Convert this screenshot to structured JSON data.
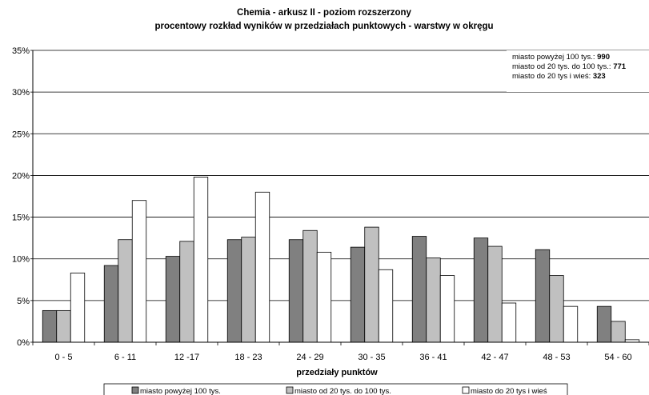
{
  "chart_data": {
    "type": "bar",
    "title": "Chemia - arkusz II - poziom rozszerzony",
    "subtitle": "procentowy rozkład wyników w przedziałach punktowych - warstwy w okręgu",
    "xlabel": "przedziały punktów",
    "ylabel": "",
    "ylim": [
      0,
      35
    ],
    "yticks": [
      "0%",
      "5%",
      "10%",
      "15%",
      "20%",
      "25%",
      "30%",
      "35%"
    ],
    "grid": true,
    "legend_position": "bottom",
    "categories": [
      "0 - 5",
      "6 - 11",
      "12 -17",
      "18 - 23",
      "24 - 29",
      "30 - 35",
      "36 - 41",
      "42 - 47",
      "48 - 53",
      "54 - 60"
    ],
    "series": [
      {
        "name": "miasto powyżej 100 tys.",
        "color": "#808080",
        "values": [
          3.8,
          9.2,
          10.3,
          12.3,
          12.3,
          11.4,
          12.7,
          12.5,
          11.1,
          4.3
        ]
      },
      {
        "name": "miasto od 20 tys. do 100 tys.",
        "color": "#c0c0c0",
        "values": [
          3.8,
          12.3,
          12.1,
          12.6,
          13.4,
          13.8,
          10.1,
          11.5,
          8.0,
          2.5
        ]
      },
      {
        "name": "miasto do 20 tys i wieś",
        "color": "#ffffff",
        "values": [
          8.3,
          17.0,
          19.8,
          18.0,
          10.8,
          8.7,
          8.0,
          4.7,
          4.3,
          0.3
        ]
      }
    ],
    "annotations": [
      {
        "label": "miasto powyżej 100 tys.: ",
        "value": "990"
      },
      {
        "label": "miasto od 20 tys. do 100 tys.: ",
        "value": "771"
      },
      {
        "label": "miasto do 20 tys i wieś: ",
        "value": "323"
      }
    ]
  }
}
